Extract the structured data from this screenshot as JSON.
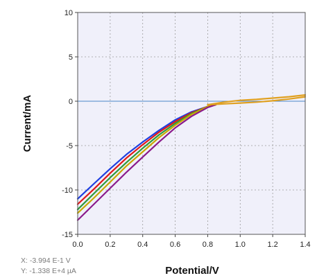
{
  "chart_data": {
    "type": "line",
    "title": "",
    "xlabel": "Potential/V",
    "ylabel": "Current/mA",
    "xlim": [
      0.0,
      1.4
    ],
    "ylim": [
      -15,
      10
    ],
    "x_ticks": [
      "0.0",
      "0.2",
      "0.4",
      "0.6",
      "0.8",
      "1.0",
      "1.2",
      "1.4"
    ],
    "y_ticks": [
      "10",
      "5",
      "0",
      "-5",
      "-10",
      "-15"
    ],
    "grid": true,
    "legend": "none",
    "background": "#f0f0fa",
    "zero_line_color": "#4a86c8",
    "series": [
      {
        "color": "#1f3fe0",
        "x": [
          0.0,
          0.1,
          0.2,
          0.3,
          0.4,
          0.5,
          0.6,
          0.7,
          0.8,
          0.85
        ],
        "y": [
          -11.0,
          -9.3,
          -7.6,
          -6.0,
          -4.6,
          -3.3,
          -2.1,
          -1.2,
          -0.6,
          -0.4
        ]
      },
      {
        "color": "#e01818",
        "x": [
          0.0,
          0.1,
          0.2,
          0.3,
          0.4,
          0.5,
          0.6,
          0.7,
          0.8,
          0.85
        ],
        "y": [
          -11.6,
          -9.9,
          -8.1,
          -6.4,
          -4.9,
          -3.5,
          -2.3,
          -1.3,
          -0.6,
          -0.4
        ]
      },
      {
        "color": "#2e9a3c",
        "x": [
          0.0,
          0.1,
          0.2,
          0.3,
          0.4,
          0.5,
          0.6,
          0.7,
          0.8,
          0.85
        ],
        "y": [
          -12.2,
          -10.4,
          -8.6,
          -6.9,
          -5.3,
          -3.8,
          -2.5,
          -1.4,
          -0.6,
          -0.4
        ]
      },
      {
        "color": "#c8a800",
        "x": [
          0.0,
          0.1,
          0.2,
          0.3,
          0.4,
          0.5,
          0.6,
          0.7,
          0.8,
          0.85
        ],
        "y": [
          -12.6,
          -10.9,
          -9.1,
          -7.3,
          -5.7,
          -4.1,
          -2.7,
          -1.5,
          -0.6,
          -0.4
        ]
      },
      {
        "color": "#8a1a8a",
        "x": [
          0.0,
          0.1,
          0.2,
          0.3,
          0.4,
          0.5,
          0.6,
          0.7,
          0.8,
          0.85
        ],
        "y": [
          -13.4,
          -11.6,
          -9.8,
          -8.0,
          -6.3,
          -4.6,
          -3.0,
          -1.7,
          -0.7,
          -0.4
        ]
      },
      {
        "color": "#e0a020",
        "x": [
          0.8,
          0.9,
          1.0,
          1.1,
          1.2,
          1.3,
          1.4
        ],
        "y": [
          -0.4,
          -0.1,
          0.1,
          0.2,
          0.35,
          0.5,
          0.7
        ]
      },
      {
        "color": "#e0a020",
        "x": [
          1.4,
          1.3,
          1.2,
          1.1,
          1.0,
          0.9,
          0.8
        ],
        "y": [
          0.5,
          0.25,
          0.05,
          -0.1,
          -0.2,
          -0.3,
          -0.4
        ]
      }
    ]
  },
  "readout": {
    "x_text": "X: -3.994 E-1 V",
    "y_text": "Y: -1.338 E+4 µA"
  }
}
